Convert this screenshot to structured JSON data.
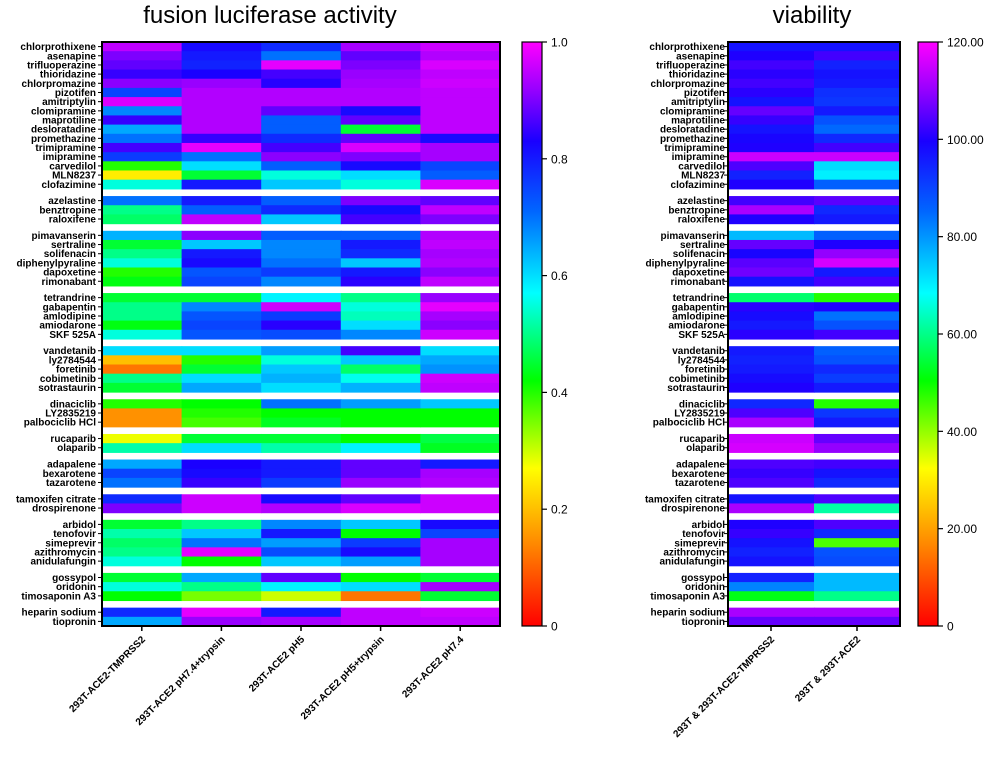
{
  "chart_data": [
    {
      "type": "heatmap",
      "title": "fusion luciferase activity",
      "columns": [
        "293T-ACE2-TMPRSS2",
        "293T-ACE2 pH7.4+trypsin",
        "293T-ACE2 pH5",
        "293T-ACE2 pH5+trypsin",
        "293T-ACE2 pH7.4"
      ],
      "colorbar": {
        "min": 0,
        "max": 1.0,
        "ticks": [
          "0",
          "0.2",
          "0.4",
          "0.6",
          "0.8",
          "1.0"
        ],
        "tick_values": [
          0,
          0.2,
          0.4,
          0.6,
          0.8,
          1.0
        ],
        "colormap": "rainbow: red-orange-yellow-green-cyan-blue-purple-magenta"
      },
      "rows": [
        {
          "label": "chlorprothixene",
          "values": [
            0.95,
            0.82,
            0.78,
            0.93,
            0.96
          ]
        },
        {
          "label": "asenapine",
          "values": [
            0.9,
            0.8,
            0.7,
            0.88,
            0.94
          ]
        },
        {
          "label": "trifluoperazine",
          "values": [
            0.88,
            0.79,
            0.98,
            0.9,
            0.97
          ]
        },
        {
          "label": "thioridazine",
          "values": [
            0.85,
            0.83,
            0.86,
            0.92,
            0.95
          ]
        },
        {
          "label": "chlorpromazine",
          "values": [
            0.91,
            0.92,
            0.84,
            0.93,
            0.96
          ]
        },
        {
          "label": "pizotifen",
          "values": [
            0.75,
            0.94,
            0.94,
            0.94,
            0.95
          ]
        },
        {
          "label": "amitriptylin",
          "values": [
            0.97,
            0.94,
            0.94,
            0.94,
            0.95
          ]
        },
        {
          "label": "clomipramine",
          "values": [
            0.68,
            0.94,
            0.88,
            0.82,
            0.95
          ]
        },
        {
          "label": "maprotiline",
          "values": [
            0.85,
            0.94,
            0.72,
            0.88,
            0.95
          ]
        },
        {
          "label": "desloratadine",
          "values": [
            0.65,
            0.94,
            0.72,
            0.45,
            0.95
          ]
        },
        {
          "label": "promethazine",
          "values": [
            0.7,
            0.85,
            0.78,
            0.88,
            0.82
          ]
        },
        {
          "label": "trimipramine",
          "values": [
            0.86,
            0.98,
            0.86,
            0.97,
            0.93
          ]
        },
        {
          "label": "imipramine",
          "values": [
            0.76,
            0.7,
            0.91,
            0.9,
            0.93
          ]
        },
        {
          "label": "carvedilol",
          "values": [
            0.4,
            0.6,
            0.72,
            0.82,
            0.75
          ]
        },
        {
          "label": "MLN8237",
          "values": [
            0.25,
            0.45,
            0.55,
            0.6,
            0.72
          ]
        },
        {
          "label": "clofazimine",
          "values": [
            0.55,
            0.8,
            0.62,
            0.55,
            0.97
          ]
        },
        {
          "label": "azelastine",
          "values": [
            0.7,
            0.8,
            0.72,
            0.9,
            0.88
          ]
        },
        {
          "label": "benztropine",
          "values": [
            0.5,
            0.72,
            0.78,
            0.82,
            0.95
          ]
        },
        {
          "label": "raloxifene",
          "values": [
            0.48,
            0.95,
            0.62,
            0.86,
            0.9
          ]
        },
        {
          "label": "pimavanserin",
          "values": [
            0.64,
            0.91,
            0.72,
            0.72,
            0.94
          ]
        },
        {
          "label": "sertraline",
          "values": [
            0.45,
            0.62,
            0.68,
            0.8,
            0.95
          ]
        },
        {
          "label": "solifenacin",
          "values": [
            0.5,
            0.8,
            0.68,
            0.78,
            0.93
          ]
        },
        {
          "label": "diphenylpyraline",
          "values": [
            0.55,
            0.82,
            0.7,
            0.62,
            0.94
          ]
        },
        {
          "label": "dapoxetine",
          "values": [
            0.4,
            0.73,
            0.76,
            0.8,
            0.91
          ]
        },
        {
          "label": "rimonabant",
          "values": [
            0.43,
            0.75,
            0.68,
            0.84,
            0.95
          ]
        },
        {
          "label": "tetrandrine",
          "values": [
            0.45,
            0.45,
            0.58,
            0.5,
            0.92
          ]
        },
        {
          "label": "gabapentin",
          "values": [
            0.5,
            0.68,
            0.96,
            0.55,
            0.98
          ]
        },
        {
          "label": "amlodipine",
          "values": [
            0.5,
            0.73,
            0.76,
            0.53,
            0.93
          ]
        },
        {
          "label": "amiodarone",
          "values": [
            0.43,
            0.75,
            0.84,
            0.6,
            0.91
          ]
        },
        {
          "label": "SKF 525A",
          "values": [
            0.55,
            0.73,
            0.74,
            0.68,
            0.96
          ]
        },
        {
          "label": "vandetanib",
          "values": [
            0.6,
            0.6,
            0.66,
            0.86,
            0.6
          ]
        },
        {
          "label": "ly2784544",
          "values": [
            0.2,
            0.4,
            0.55,
            0.62,
            0.65
          ]
        },
        {
          "label": "foretinib",
          "values": [
            0.12,
            0.45,
            0.62,
            0.48,
            0.67
          ]
        },
        {
          "label": "cobimetinib",
          "values": [
            0.5,
            0.6,
            0.64,
            0.56,
            0.96
          ]
        },
        {
          "label": "sotrastaurin",
          "values": [
            0.45,
            0.65,
            0.6,
            0.64,
            0.95
          ]
        },
        {
          "label": "dinaciclib",
          "values": [
            0.4,
            0.42,
            0.7,
            0.66,
            0.62
          ]
        },
        {
          "label": "LY2835219",
          "values": [
            0.15,
            0.4,
            0.42,
            0.42,
            0.42
          ]
        },
        {
          "label": "palbociclib HCl",
          "values": [
            0.15,
            0.38,
            0.44,
            0.42,
            0.42
          ]
        },
        {
          "label": "rucaparib",
          "values": [
            0.28,
            0.45,
            0.45,
            0.42,
            0.46
          ]
        },
        {
          "label": "olaparib",
          "values": [
            0.52,
            0.6,
            0.52,
            0.58,
            0.44
          ]
        },
        {
          "label": "adapalene",
          "values": [
            0.65,
            0.83,
            0.8,
            0.88,
            0.8
          ]
        },
        {
          "label": "bexarotene",
          "values": [
            0.75,
            0.82,
            0.8,
            0.88,
            0.93
          ]
        },
        {
          "label": "tazarotene",
          "values": [
            0.7,
            0.85,
            0.76,
            0.92,
            0.94
          ]
        },
        {
          "label": "tamoxifen citrate",
          "values": [
            0.78,
            0.96,
            0.82,
            0.88,
            0.96
          ]
        },
        {
          "label": "drospirenone",
          "values": [
            0.9,
            0.96,
            0.94,
            0.97,
            0.96
          ]
        },
        {
          "label": "arbidol",
          "values": [
            0.45,
            0.5,
            0.68,
            0.62,
            0.82
          ]
        },
        {
          "label": "tenofovir",
          "values": [
            0.52,
            0.62,
            0.8,
            0.42,
            0.75
          ]
        },
        {
          "label": "simeprevir",
          "values": [
            0.48,
            0.7,
            0.66,
            0.76,
            0.93
          ]
        },
        {
          "label": "azithromycin",
          "values": [
            0.5,
            0.98,
            0.74,
            0.82,
            0.93
          ]
        },
        {
          "label": "anidulafungin",
          "values": [
            0.55,
            0.42,
            0.62,
            0.66,
            0.93
          ]
        },
        {
          "label": "gossypol",
          "values": [
            0.45,
            0.65,
            0.88,
            0.42,
            0.45
          ]
        },
        {
          "label": "oridonin",
          "values": [
            0.55,
            0.5,
            0.58,
            0.6,
            0.93
          ]
        },
        {
          "label": "timosaponin A3",
          "values": [
            0.42,
            0.35,
            0.3,
            0.12,
            0.45
          ]
        },
        {
          "label": "heparin sodium",
          "values": [
            0.78,
            0.98,
            0.8,
            0.95,
            0.96
          ]
        },
        {
          "label": "tiopronin",
          "values": [
            0.65,
            0.92,
            0.93,
            0.95,
            0.95
          ]
        }
      ]
    },
    {
      "type": "heatmap",
      "title": "viability",
      "columns": [
        "293T & 293T-ACE2-TMPRSS2",
        "293T & 293T-ACE2"
      ],
      "colorbar": {
        "min": 0,
        "max": 120,
        "ticks": [
          "0",
          "20.00",
          "40.00",
          "60.00",
          "80.00",
          "100.00",
          "120.00"
        ],
        "tick_values": [
          0,
          20,
          40,
          60,
          80,
          100,
          120
        ],
        "colormap": "rainbow: red-orange-yellow-green-cyan-blue-purple-magenta"
      },
      "rows": [
        {
          "label": "chlorprothixene",
          "values": [
            97,
            97
          ]
        },
        {
          "label": "asenapine",
          "values": [
            100,
            103
          ]
        },
        {
          "label": "trifluoperazine",
          "values": [
            103,
            95
          ]
        },
        {
          "label": "thioridazine",
          "values": [
            101,
            97
          ]
        },
        {
          "label": "chlorpromazine",
          "values": [
            103,
            96
          ]
        },
        {
          "label": "pizotifen",
          "values": [
            101,
            93
          ]
        },
        {
          "label": "amitriptylin",
          "values": [
            97,
            92
          ]
        },
        {
          "label": "clomipramine",
          "values": [
            106,
            96
          ]
        },
        {
          "label": "maprotiline",
          "values": [
            102,
            88
          ]
        },
        {
          "label": "desloratadine",
          "values": [
            97,
            85
          ]
        },
        {
          "label": "promethazine",
          "values": [
            99,
            94
          ]
        },
        {
          "label": "trimipramine",
          "values": [
            100,
            103
          ]
        },
        {
          "label": "imipramine",
          "values": [
            115,
            115
          ]
        },
        {
          "label": "carvedilol",
          "values": [
            104,
            72
          ]
        },
        {
          "label": "MLN8237",
          "values": [
            95,
            70
          ]
        },
        {
          "label": "clofazimine",
          "values": [
            100,
            86
          ]
        },
        {
          "label": "azelastine",
          "values": [
            103,
            105
          ]
        },
        {
          "label": "benztropine",
          "values": [
            112,
            94
          ]
        },
        {
          "label": "raloxifene",
          "values": [
            100,
            96
          ]
        },
        {
          "label": "pimavanserin",
          "values": [
            76,
            86
          ]
        },
        {
          "label": "sertraline",
          "values": [
            106,
            100
          ]
        },
        {
          "label": "solifenacin",
          "values": [
            99,
            110
          ]
        },
        {
          "label": "diphenylpyraline",
          "values": [
            105,
            116
          ]
        },
        {
          "label": "dapoxetine",
          "values": [
            107,
            96
          ]
        },
        {
          "label": "rimonabant",
          "values": [
            97,
            103
          ]
        },
        {
          "label": "tetrandrine",
          "values": [
            58,
            48
          ]
        },
        {
          "label": "gabapentin",
          "values": [
            101,
            100
          ]
        },
        {
          "label": "amlodipine",
          "values": [
            98,
            84
          ]
        },
        {
          "label": "amiodarone",
          "values": [
            96,
            88
          ]
        },
        {
          "label": "SKF 525A",
          "values": [
            101,
            103
          ]
        },
        {
          "label": "vandetanib",
          "values": [
            96,
            86
          ]
        },
        {
          "label": "ly2784544",
          "values": [
            95,
            88
          ]
        },
        {
          "label": "foretinib",
          "values": [
            96,
            94
          ]
        },
        {
          "label": "cobimetinib",
          "values": [
            98,
            91
          ]
        },
        {
          "label": "sotrastaurin",
          "values": [
            100,
            96
          ]
        },
        {
          "label": "dinaciclib",
          "values": [
            94,
            48
          ]
        },
        {
          "label": "LY2835219",
          "values": [
            104,
            92
          ]
        },
        {
          "label": "palbociclib HCl",
          "values": [
            112,
            96
          ]
        },
        {
          "label": "rucaparib",
          "values": [
            115,
            106
          ]
        },
        {
          "label": "olaparib",
          "values": [
            116,
            110
          ]
        },
        {
          "label": "adapalene",
          "values": [
            104,
            103
          ]
        },
        {
          "label": "bexarotene",
          "values": [
            102,
            97
          ]
        },
        {
          "label": "tazarotene",
          "values": [
            104,
            94
          ]
        },
        {
          "label": "tamoxifen citrate",
          "values": [
            97,
            104
          ]
        },
        {
          "label": "drospirenone",
          "values": [
            112,
            62
          ]
        },
        {
          "label": "arbidol",
          "values": [
            100,
            104
          ]
        },
        {
          "label": "tenofovir",
          "values": [
            102,
            94
          ]
        },
        {
          "label": "simeprevir",
          "values": [
            97,
            45
          ]
        },
        {
          "label": "azithromycin",
          "values": [
            95,
            88
          ]
        },
        {
          "label": "anidulafungin",
          "values": [
            97,
            89
          ]
        },
        {
          "label": "gossypol",
          "values": [
            95,
            76
          ]
        },
        {
          "label": "oridonin",
          "values": [
            82,
            76
          ]
        },
        {
          "label": "timosaponin A3",
          "values": [
            52,
            60
          ]
        },
        {
          "label": "heparin sodium",
          "values": [
            112,
            112
          ]
        },
        {
          "label": "tiopronin",
          "values": [
            106,
            106
          ]
        }
      ]
    }
  ]
}
